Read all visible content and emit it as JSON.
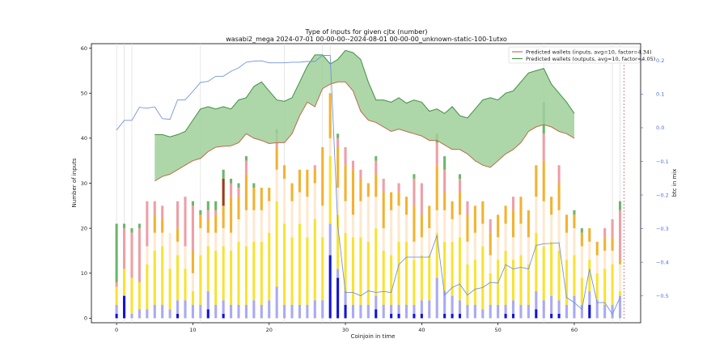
{
  "chart_data": {
    "type": "bar",
    "title_line1": "Type of inputs for given cjtx (number)",
    "title_line2": "wasabi2_mega 2024-07-01 00-00-00--2024-08-01 00-00-00_unknown-static-100-1utxo",
    "xlabel": "Coinjoin in time",
    "ylabel": "Number of inputs",
    "y2label": "btc in mix",
    "xlim": [
      -3.3,
      68.7
    ],
    "ylim": [
      -1,
      61
    ],
    "y2lim": [
      -0.58,
      0.25
    ],
    "x_ticks": [
      0,
      10,
      20,
      30,
      40,
      50,
      60
    ],
    "y_ticks": [
      0,
      10,
      20,
      30,
      40,
      50,
      60
    ],
    "y2_ticks": [
      -0.5,
      -0.4,
      -0.3,
      -0.2,
      -0.1,
      0.0,
      0.1,
      0.2
    ],
    "y2_tick_labels": [
      "−0.5",
      "−0.4",
      "−0.3",
      "−0.2",
      "−0.1",
      "0.0",
      "0.1",
      "0.2"
    ],
    "stack_series": [
      {
        "name": "seg1",
        "color": "#1414d8"
      },
      {
        "name": "seg2",
        "color": "#aaaaf2"
      },
      {
        "name": "seg3",
        "color": "#f8e234"
      },
      {
        "name": "seg4",
        "color": "#fde9cf"
      },
      {
        "name": "seg5",
        "color": "#f3b232"
      },
      {
        "name": "seg6",
        "color": "#ee9fa6"
      },
      {
        "name": "seg7",
        "color": "#9a3d1b"
      },
      {
        "name": "seg8",
        "color": "#6db56d"
      }
    ],
    "bars": [
      {
        "x": 0,
        "segs": [
          1,
          2,
          4,
          0,
          0,
          1,
          0,
          13
        ]
      },
      {
        "x": 1,
        "segs": [
          5,
          0,
          6,
          0,
          0,
          9,
          0,
          1
        ]
      },
      {
        "x": 2,
        "segs": [
          0,
          1,
          8,
          0,
          0,
          10,
          0,
          1
        ]
      },
      {
        "x": 3,
        "segs": [
          0,
          2,
          6,
          0,
          0,
          12,
          0,
          1
        ]
      },
      {
        "x": 4,
        "segs": [
          0,
          2,
          10,
          4,
          0,
          10,
          0,
          0
        ]
      },
      {
        "x": 5,
        "segs": [
          0,
          3,
          12,
          4,
          4,
          3,
          0,
          0
        ]
      },
      {
        "x": 6,
        "segs": [
          0,
          3,
          13,
          3,
          3,
          3,
          0,
          0
        ]
      },
      {
        "x": 7,
        "segs": [
          0,
          2,
          9,
          8,
          0,
          0,
          0,
          0
        ]
      },
      {
        "x": 8,
        "segs": [
          1,
          3,
          10,
          3,
          3,
          6,
          0,
          0
        ]
      },
      {
        "x": 9,
        "segs": [
          0,
          4,
          7,
          5,
          0,
          11,
          0,
          0
        ]
      },
      {
        "x": 10,
        "segs": [
          0,
          3,
          3,
          4,
          5,
          10,
          0,
          1
        ]
      },
      {
        "x": 11,
        "segs": [
          0,
          3,
          11,
          6,
          3,
          0,
          0,
          1
        ]
      },
      {
        "x": 12,
        "segs": [
          2,
          4,
          10,
          3,
          3,
          2,
          0,
          2
        ]
      },
      {
        "x": 13,
        "segs": [
          0,
          3,
          12,
          4,
          4,
          1,
          0,
          2
        ]
      },
      {
        "x": 14,
        "segs": [
          1,
          3,
          12,
          4,
          5,
          0,
          6,
          2
        ]
      },
      {
        "x": 15,
        "segs": [
          0,
          3,
          12,
          4,
          8,
          3,
          0,
          1
        ]
      },
      {
        "x": 16,
        "segs": [
          0,
          3,
          14,
          5,
          5,
          2,
          0,
          1
        ]
      },
      {
        "x": 17,
        "segs": [
          0,
          3,
          13,
          8,
          8,
          3,
          0,
          1
        ]
      },
      {
        "x": 18,
        "segs": [
          0,
          4,
          13,
          7,
          5,
          0,
          0,
          1
        ]
      },
      {
        "x": 19,
        "segs": [
          0,
          3,
          14,
          7,
          5,
          0,
          0,
          0
        ]
      },
      {
        "x": 20,
        "segs": [
          0,
          4,
          15,
          7,
          3,
          0,
          0,
          0
        ]
      },
      {
        "x": 21,
        "segs": [
          0,
          7,
          19,
          7,
          5,
          3,
          0,
          1
        ]
      },
      {
        "x": 22,
        "segs": [
          0,
          3,
          18,
          10,
          3,
          0,
          0,
          0
        ]
      },
      {
        "x": 23,
        "segs": [
          0,
          3,
          15,
          8,
          4,
          0,
          0,
          0
        ]
      },
      {
        "x": 24,
        "segs": [
          0,
          3,
          18,
          7,
          5,
          0,
          0,
          0
        ]
      },
      {
        "x": 25,
        "segs": [
          0,
          3,
          15,
          9,
          6,
          0,
          0,
          0
        ]
      },
      {
        "x": 26,
        "segs": [
          0,
          4,
          18,
          8,
          3,
          1,
          0,
          0
        ]
      },
      {
        "x": 27,
        "segs": [
          0,
          4,
          14,
          7,
          13,
          0,
          0,
          0
        ]
      },
      {
        "x": 28,
        "segs": [
          14,
          7,
          15,
          4,
          10,
          0,
          0,
          0
        ]
      },
      {
        "x": 29,
        "segs": [
          9,
          2,
          12,
          6,
          9,
          2,
          0,
          1
        ]
      },
      {
        "x": 30,
        "segs": [
          3,
          3,
          13,
          7,
          8,
          4,
          0,
          0
        ]
      },
      {
        "x": 31,
        "segs": [
          0,
          3,
          15,
          5,
          10,
          2,
          0,
          0
        ]
      },
      {
        "x": 32,
        "segs": [
          0,
          3,
          15,
          8,
          5,
          2,
          0,
          0
        ]
      },
      {
        "x": 33,
        "segs": [
          0,
          3,
          14,
          10,
          3,
          0,
          0,
          0
        ]
      },
      {
        "x": 34,
        "segs": [
          2,
          3,
          15,
          7,
          5,
          3,
          0,
          1
        ]
      },
      {
        "x": 35,
        "segs": [
          0,
          3,
          12,
          5,
          8,
          3,
          0,
          0
        ]
      },
      {
        "x": 36,
        "segs": [
          1,
          2,
          11,
          10,
          4,
          0,
          0,
          0
        ]
      },
      {
        "x": 37,
        "segs": [
          1,
          2,
          14,
          8,
          3,
          2,
          0,
          0
        ]
      },
      {
        "x": 38,
        "segs": [
          0,
          3,
          14,
          6,
          4,
          0,
          0,
          0
        ]
      },
      {
        "x": 39,
        "segs": [
          1,
          2,
          10,
          4,
          8,
          6,
          0,
          1
        ]
      },
      {
        "x": 40,
        "segs": [
          1,
          3,
          10,
          4,
          5,
          7,
          0,
          0
        ]
      },
      {
        "x": 41,
        "segs": [
          0,
          4,
          10,
          6,
          5,
          0,
          0,
          0
        ]
      },
      {
        "x": 42,
        "segs": [
          0,
          9,
          10,
          5,
          10,
          5,
          0,
          2
        ]
      },
      {
        "x": 43,
        "segs": [
          1,
          5,
          11,
          7,
          4,
          5,
          0,
          3
        ]
      },
      {
        "x": 44,
        "segs": [
          1,
          4,
          12,
          5,
          4,
          0,
          0,
          0
        ]
      },
      {
        "x": 45,
        "segs": [
          1,
          3,
          14,
          5,
          5,
          3,
          0,
          1
        ]
      },
      {
        "x": 46,
        "segs": [
          0,
          3,
          9,
          5,
          6,
          3,
          0,
          0
        ]
      },
      {
        "x": 47,
        "segs": [
          0,
          3,
          10,
          6,
          6,
          0,
          0,
          0
        ]
      },
      {
        "x": 48,
        "segs": [
          0,
          2,
          14,
          5,
          5,
          0,
          0,
          0
        ]
      },
      {
        "x": 49,
        "segs": [
          0,
          3,
          7,
          4,
          5,
          3,
          0,
          0
        ]
      },
      {
        "x": 50,
        "segs": [
          0,
          3,
          10,
          5,
          5,
          0,
          0,
          0
        ]
      },
      {
        "x": 51,
        "segs": [
          1,
          2,
          12,
          6,
          4,
          0,
          0,
          0
        ]
      },
      {
        "x": 52,
        "segs": [
          1,
          3,
          9,
          5,
          6,
          3,
          0,
          0
        ]
      },
      {
        "x": 53,
        "segs": [
          0,
          3,
          11,
          7,
          6,
          0,
          0,
          0
        ]
      },
      {
        "x": 54,
        "segs": [
          0,
          3,
          9,
          6,
          6,
          0,
          0,
          0
        ]
      },
      {
        "x": 55,
        "segs": [
          2,
          4,
          13,
          8,
          7,
          0,
          0,
          0
        ]
      },
      {
        "x": 56,
        "segs": [
          0,
          4,
          12,
          10,
          9,
          6,
          0,
          7
        ]
      },
      {
        "x": 57,
        "segs": [
          1,
          4,
          12,
          6,
          4,
          0,
          0,
          0
        ]
      },
      {
        "x": 58,
        "segs": [
          1,
          3,
          11,
          9,
          6,
          4,
          0,
          0
        ]
      },
      {
        "x": 59,
        "segs": [
          0,
          3,
          10,
          6,
          4,
          0,
          0,
          0
        ]
      },
      {
        "x": 60,
        "segs": [
          0,
          5,
          9,
          6,
          3,
          0,
          0,
          1
        ]
      },
      {
        "x": 61,
        "segs": [
          0,
          3,
          6,
          7,
          3,
          0,
          0,
          1
        ]
      },
      {
        "x": 62,
        "segs": [
          3,
          3,
          7,
          4,
          3,
          0,
          0,
          0
        ]
      },
      {
        "x": 63,
        "segs": [
          0,
          4,
          6,
          4,
          3,
          0,
          0,
          0
        ]
      },
      {
        "x": 64,
        "segs": [
          0,
          3,
          8,
          4,
          3,
          2,
          0,
          0
        ]
      },
      {
        "x": 65,
        "segs": [
          0,
          3,
          9,
          3,
          3,
          4,
          0,
          0
        ]
      },
      {
        "x": 66,
        "segs": [
          0,
          5,
          1,
          6,
          1,
          11,
          0,
          2
        ]
      }
    ],
    "vertical_lines_x": [
      0,
      1,
      2,
      11,
      22,
      27,
      28,
      56,
      65,
      66
    ],
    "legend": [
      {
        "label": "Predicted wallets (inputs, avg=10, factor=4.34)",
        "color": "#c0694a"
      },
      {
        "label": "Predicted wallets (outputs, avg=10, factor=4.05)",
        "color": "#3f8f3f"
      }
    ],
    "wallets_inputs": {
      "x": [
        5,
        6,
        7,
        8,
        9,
        10,
        11,
        12,
        13,
        14,
        15,
        16,
        17,
        18,
        19,
        20,
        21,
        22,
        23,
        24,
        25,
        26,
        27,
        28,
        29,
        30,
        31,
        32,
        33,
        34,
        35,
        36,
        37,
        38,
        39,
        40,
        41,
        42,
        43,
        44,
        45,
        46,
        47,
        48,
        49,
        50,
        51,
        52,
        53,
        54,
        55,
        56,
        57,
        58,
        59,
        60
      ],
      "y": [
        30.5,
        31.5,
        32,
        33,
        34,
        35,
        35.5,
        37,
        38,
        38.2,
        38.3,
        39,
        41,
        40,
        39.5,
        38.8,
        39,
        39,
        41,
        45,
        48,
        47,
        51,
        52,
        52.5,
        52.5,
        50.5,
        46,
        44,
        43.5,
        42.5,
        41.5,
        42,
        41.5,
        41,
        40.5,
        39.5,
        39.5,
        38.5,
        37.5,
        37.5,
        36.5,
        35,
        34,
        33.5,
        35,
        36.5,
        37.5,
        39,
        41.5,
        42.5,
        43,
        42.5,
        41.5,
        41,
        40
      ]
    },
    "wallets_outputs": {
      "x": [
        5,
        6,
        7,
        8,
        9,
        10,
        11,
        12,
        13,
        14,
        15,
        16,
        17,
        18,
        19,
        20,
        21,
        22,
        23,
        24,
        25,
        26,
        27,
        28,
        29,
        30,
        31,
        32,
        33,
        34,
        35,
        36,
        37,
        38,
        39,
        40,
        41,
        42,
        43,
        44,
        45,
        46,
        47,
        48,
        49,
        50,
        51,
        52,
        53,
        54,
        55,
        56,
        57,
        58,
        59,
        60
      ],
      "y": [
        40.8,
        40.8,
        40.3,
        40.8,
        41.5,
        44,
        46.5,
        47,
        46.5,
        47,
        46.5,
        48.5,
        49,
        51.5,
        52.5,
        50.5,
        48.5,
        48.2,
        49,
        52.5,
        56,
        58.5,
        58.5,
        56.5,
        57.5,
        59.5,
        59,
        57.5,
        52.5,
        48.5,
        48.5,
        48,
        49,
        47.8,
        48.5,
        48,
        46,
        46.5,
        45.5,
        47,
        45,
        44.5,
        46.5,
        48.5,
        49,
        48.5,
        50,
        50.5,
        52.5,
        54.5,
        55,
        55.5,
        52,
        50,
        48,
        45.5
      ]
    },
    "btc_in_mix": {
      "x": [
        0,
        1,
        2,
        3,
        4,
        5,
        6,
        7,
        8,
        9,
        10,
        11,
        12,
        13,
        14,
        15,
        16,
        17,
        18,
        19,
        20,
        21,
        22,
        23,
        24,
        25,
        26,
        27,
        28,
        29,
        30,
        31,
        32,
        33,
        34,
        35,
        36,
        37,
        38,
        39,
        40,
        41,
        42,
        43,
        44,
        45,
        46,
        47,
        48,
        49,
        50,
        51,
        52,
        53,
        54,
        55,
        56,
        57,
        58,
        59,
        60,
        61,
        62,
        63,
        64,
        65,
        66
      ],
      "y": [
        -0.007,
        0.022,
        0.022,
        0.061,
        0.058,
        0.062,
        0.027,
        0.025,
        0.083,
        0.083,
        0.108,
        0.135,
        0.138,
        0.153,
        0.153,
        0.168,
        0.178,
        0.195,
        0.198,
        0.199,
        0.193,
        0.193,
        0.193,
        0.195,
        0.195,
        0.197,
        0.197,
        0.215,
        0.215,
        -0.29,
        -0.49,
        -0.49,
        -0.5,
        -0.485,
        -0.49,
        -0.487,
        -0.49,
        -0.407,
        -0.385,
        -0.385,
        -0.385,
        -0.385,
        -0.32,
        -0.498,
        -0.475,
        -0.465,
        -0.498,
        -0.48,
        -0.475,
        -0.46,
        -0.462,
        -0.407,
        -0.42,
        -0.415,
        -0.42,
        -0.35,
        -0.345,
        -0.344,
        -0.342,
        -0.505,
        -0.52,
        -0.54,
        -0.42,
        -0.52,
        -0.52,
        -0.555,
        -0.505
      ]
    }
  }
}
